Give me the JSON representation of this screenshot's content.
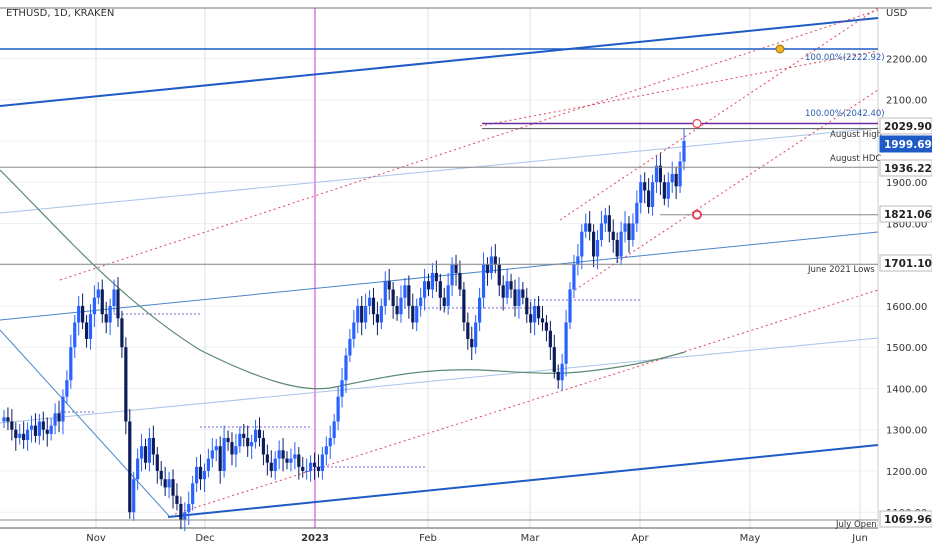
{
  "header": {
    "symbol": "ETHUSD, 1D, KRAKEN",
    "currency": "USD"
  },
  "chart_data": {
    "type": "candlestick",
    "symbol": "ETHUSD",
    "timeframe": "1D",
    "exchange": "KRAKEN",
    "currency": "USD",
    "ylim": [
      1060,
      2300
    ],
    "y_ticks": [
      1100,
      1200,
      1300,
      1400,
      1500,
      1600,
      1700,
      1800,
      1900,
      2000,
      2100,
      2200
    ],
    "x_ticks": [
      "Nov",
      "Dec",
      "2023",
      "Feb",
      "Mar",
      "Apr",
      "May",
      "Jun"
    ],
    "price_tags": [
      {
        "value": 2029.9,
        "label": "2029.90",
        "highlight": false
      },
      {
        "value": 1999.69,
        "label": "1999.69",
        "highlight": true
      },
      {
        "value": 1936.22,
        "label": "1936.22",
        "highlight": false
      },
      {
        "value": 1821.06,
        "label": "1821.06",
        "highlight": false
      },
      {
        "value": 1701.1,
        "label": "1701.10",
        "highlight": false
      },
      {
        "value": 1069.96,
        "label": "1069.96",
        "highlight": false
      }
    ],
    "annotations": [
      {
        "text": "100.00%(2222.92)",
        "value": 2222.92
      },
      {
        "text": "100.00%(2042.40)",
        "value": 2042.4
      },
      {
        "text": "August High",
        "value": 2029.9
      },
      {
        "text": "August HDC",
        "value": 1936.22
      },
      {
        "text": "June 2021 Lows",
        "value": 1701.1
      },
      {
        "text": "July Open",
        "value": 1069.96
      }
    ],
    "horizontal_levels": [
      2222.92,
      2042.4,
      2029.9,
      1936.22,
      1821.06,
      1701.1,
      1069.96
    ],
    "grid": true,
    "colors": {
      "up": "#2962ff",
      "down": "#0d1d5c",
      "trend": "#1e5bc6",
      "channel_dotted": "#e0445c",
      "moving_average": "#5b8a72",
      "vertical_marker": "#cc33cc",
      "highlight_tag": "#1e5bc6"
    },
    "series": [
      {
        "name": "ETHUSD",
        "close": [
          1330,
          1320,
          1300,
          1280,
          1290,
          1275,
          1300,
          1310,
          1285,
          1320,
          1300,
          1290,
          1310,
          1340,
          1320,
          1380,
          1420,
          1500,
          1560,
          1600,
          1560,
          1520,
          1580,
          1620,
          1640,
          1580,
          1560,
          1600,
          1640,
          1570,
          1500,
          1320,
          1100,
          1180,
          1230,
          1260,
          1220,
          1280,
          1240,
          1200,
          1180,
          1160,
          1180,
          1140,
          1120,
          1080,
          1100,
          1120,
          1170,
          1210,
          1180,
          1200,
          1230,
          1250,
          1260,
          1200,
          1280,
          1270,
          1240,
          1260,
          1290,
          1280,
          1260,
          1270,
          1300,
          1280,
          1240,
          1220,
          1200,
          1230,
          1250,
          1230,
          1220,
          1230,
          1240,
          1210,
          1200,
          1200,
          1220,
          1210,
          1200,
          1240,
          1260,
          1280,
          1320,
          1380,
          1420,
          1480,
          1520,
          1560,
          1600,
          1560,
          1600,
          1620,
          1580,
          1560,
          1600,
          1660,
          1640,
          1600,
          1580,
          1620,
          1650,
          1600,
          1560,
          1600,
          1620,
          1660,
          1640,
          1680,
          1660,
          1620,
          1600,
          1650,
          1700,
          1680,
          1640,
          1560,
          1520,
          1500,
          1560,
          1620,
          1700,
          1680,
          1720,
          1700,
          1650,
          1620,
          1660,
          1640,
          1600,
          1640,
          1620,
          1580,
          1560,
          1600,
          1570,
          1560,
          1540,
          1500,
          1440,
          1420,
          1460,
          1560,
          1640,
          1700,
          1720,
          1780,
          1800,
          1780,
          1720,
          1760,
          1800,
          1820,
          1780,
          1760,
          1720,
          1780,
          1800,
          1760,
          1800,
          1850,
          1900,
          1880,
          1840,
          1900,
          1940,
          1900,
          1860,
          1900,
          1920,
          1890,
          1950,
          2000
        ]
      }
    ]
  }
}
